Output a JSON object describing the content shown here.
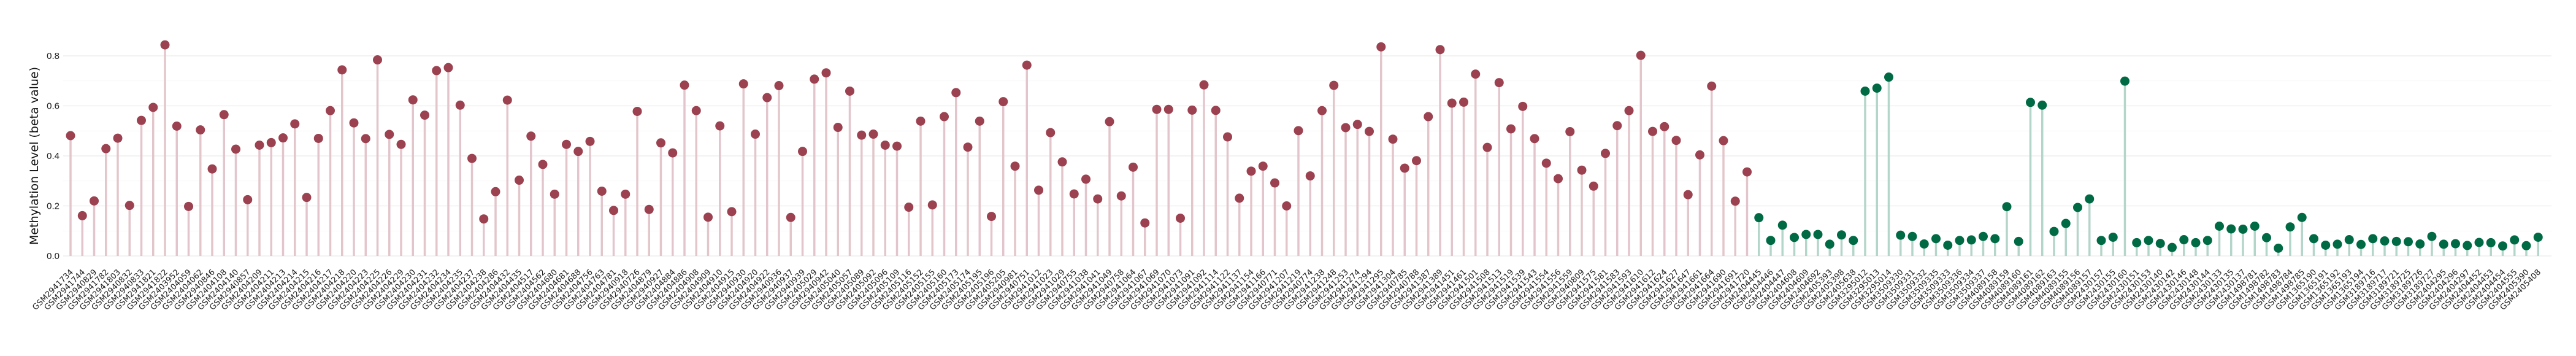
{
  "chart_data": {
    "type": "lollipop",
    "title": "",
    "xlabel": "",
    "ylabel": "Methylation Level (beta value)",
    "ylim": [
      0,
      0.86
    ],
    "yticks": [
      0.0,
      0.2,
      0.4,
      0.6,
      0.8
    ],
    "grid": true,
    "legend": "none",
    "series": [
      {
        "dot_color": "#9b4150",
        "stem_color": "#e3c6cc",
        "categories": [
          "GSM2941734",
          "GSM2941744",
          "GSM2940829",
          "GSM2941782",
          "GSM2941803",
          "GSM2940832",
          "GSM2940833",
          "GSM2941821",
          "GSM2941822",
          "GSM2403952",
          "GSM2404059",
          "GSM2404062",
          "GSM2940846",
          "GSM2404108",
          "GSM2404140",
          "GSM2940857",
          "GSM2404209",
          "GSM2404211",
          "GSM2404213",
          "GSM2404214",
          "GSM2404215",
          "GSM2404216",
          "GSM2404217",
          "GSM2404218",
          "GSM2404220",
          "GSM2404223",
          "GSM2404225",
          "GSM2404226",
          "GSM2404229",
          "GSM2404230",
          "GSM2404231",
          "GSM2404232",
          "GSM2404234",
          "GSM2404235",
          "GSM2404237",
          "GSM2404238",
          "GSM2404286",
          "GSM2404432",
          "GSM2404435",
          "GSM2404517",
          "GSM2404562",
          "GSM2404680",
          "GSM2404681",
          "GSM2404688",
          "GSM2404756",
          "GSM2404763",
          "GSM2404781",
          "GSM2940918",
          "GSM2940726",
          "GSM2404879",
          "GSM2940927",
          "GSM2404884",
          "GSM2404886",
          "GSM2404908",
          "GSM2404909",
          "GSM2404910",
          "GSM2404915",
          "GSM2940930",
          "GSM2404920",
          "GSM2404922",
          "GSM2940936",
          "GSM2940937",
          "GSM2940939",
          "GSM2405029",
          "GSM2940942",
          "GSM2405040",
          "GSM2405057",
          "GSM2405089",
          "GSM2405092",
          "GSM2405096",
          "GSM2405109",
          "GSM2405116",
          "GSM2405152",
          "GSM2405155",
          "GSM2405160",
          "GSM2405173",
          "GSM2405174",
          "GSM2405195",
          "GSM2405196",
          "GSM2405205",
          "GSM2940981",
          "GSM2940751",
          "GSM2941012",
          "GSM2941023",
          "GSM2941029",
          "GSM2940755",
          "GSM2941038",
          "GSM2941041",
          "GSM2941049",
          "GSM2940758",
          "GSM2941064",
          "GSM2941067",
          "GSM2941069",
          "GSM2941070",
          "GSM2941073",
          "GSM2941091",
          "GSM2941092",
          "GSM2941114",
          "GSM2941122",
          "GSM2941137",
          "GSM2941154",
          "GSM2941166",
          "GSM2940771",
          "GSM2941207",
          "GSM2941219",
          "GSM2940774",
          "GSM2941238",
          "GSM2941248",
          "GSM2941253",
          "GSM2941274",
          "GSM2941294",
          "GSM2941295",
          "GSM2941304",
          "GSM2940785",
          "GSM2940788",
          "GSM2941387",
          "GSM2941389",
          "GSM2941451",
          "GSM2941461",
          "GSM2941501",
          "GSM2941508",
          "GSM2941513",
          "GSM2941519",
          "GSM2941539",
          "GSM2941543",
          "GSM2941554",
          "GSM2941556",
          "GSM2941559",
          "GSM2940809",
          "GSM2941575",
          "GSM2941581",
          "GSM2941583",
          "GSM2941593",
          "GSM2941610",
          "GSM2941612",
          "GSM2941624",
          "GSM2941627",
          "GSM2941647",
          "GSM2941661",
          "GSM2941664",
          "GSM2941690",
          "GSM2941691",
          "GSM2941720"
        ],
        "values": [
          0.481,
          0.161,
          0.22,
          0.429,
          0.471,
          0.202,
          0.542,
          0.594,
          0.844,
          0.519,
          0.198,
          0.504,
          0.348,
          0.565,
          0.427,
          0.225,
          0.443,
          0.453,
          0.472,
          0.528,
          0.234,
          0.47,
          0.581,
          0.744,
          0.532,
          0.469,
          0.784,
          0.486,
          0.446,
          0.624,
          0.563,
          0.741,
          0.753,
          0.603,
          0.39,
          0.148,
          0.257,
          0.623,
          0.303,
          0.479,
          0.366,
          0.247,
          0.446,
          0.418,
          0.458,
          0.259,
          0.182,
          0.247,
          0.578,
          0.186,
          0.452,
          0.412,
          0.683,
          0.581,
          0.155,
          0.52,
          0.177,
          0.688,
          0.487,
          0.633,
          0.681,
          0.154,
          0.418,
          0.707,
          0.732,
          0.514,
          0.659,
          0.483,
          0.487,
          0.443,
          0.439,
          0.195,
          0.539,
          0.204,
          0.557,
          0.653,
          0.435,
          0.539,
          0.158,
          0.617,
          0.359,
          0.763,
          0.263,
          0.493,
          0.376,
          0.248,
          0.307,
          0.228,
          0.537,
          0.24,
          0.355,
          0.132,
          0.586,
          0.586,
          0.151,
          0.583,
          0.684,
          0.582,
          0.476,
          0.231,
          0.339,
          0.359,
          0.292,
          0.2,
          0.501,
          0.32,
          0.581,
          0.682,
          0.513,
          0.526,
          0.498,
          0.836,
          0.467,
          0.351,
          0.381,
          0.557,
          0.825,
          0.611,
          0.615,
          0.727,
          0.434,
          0.693,
          0.508,
          0.598,
          0.469,
          0.371,
          0.309,
          0.497,
          0.343,
          0.279,
          0.41,
          0.521,
          0.581,
          0.802,
          0.498,
          0.517,
          0.462,
          0.245,
          0.404,
          0.679,
          0.461,
          0.219,
          0.336
        ]
      },
      {
        "dot_color": "#006a45",
        "stem_color": "#b4d5c9",
        "categories": [
          "GSM2404445",
          "GSM2404446",
          "GSM2404447",
          "GSM2404608",
          "GSM2404609",
          "GSM2404692",
          "GSM2405393",
          "GSM2405398",
          "GSM2405638",
          "GSM3295012",
          "GSM3295013",
          "GSM3295014",
          "GSM3509330",
          "GSM3509331",
          "GSM3509332",
          "GSM3509335",
          "GSM3509333",
          "GSM3509336",
          "GSM3509334",
          "GSM3509337",
          "GSM4089158",
          "GSM4089159",
          "GSM4089160",
          "GSM4089161",
          "GSM4089162",
          "GSM4089163",
          "GSM4089155",
          "GSM4089156",
          "GSM4089157",
          "GSM2430157",
          "GSM2430155",
          "GSM2430160",
          "GSM2430151",
          "GSM2430153",
          "GSM2430140",
          "GSM2430142",
          "GSM2430146",
          "GSM2430148",
          "GSM2430144",
          "GSM2430133",
          "GSM2430135",
          "GSM2430137",
          "GSM1498781",
          "GSM1498782",
          "GSM1498783",
          "GSM1498784",
          "GSM1498785",
          "GSM1365190",
          "GSM1365191",
          "GSM1365192",
          "GSM1365193",
          "GSM1365194",
          "GSM3189716",
          "GSM3189717",
          "GSM3189721",
          "GSM3189725",
          "GSM3189726",
          "GSM3189727",
          "GSM2404295",
          "GSM2404296",
          "GSM2404297",
          "GSM2404452",
          "GSM2404453",
          "GSM2404454",
          "GSM2404555",
          "GSM2405390",
          "GSM2405408"
        ],
        "values": [
          0.153,
          0.062,
          0.123,
          0.074,
          0.086,
          0.086,
          0.047,
          0.084,
          0.062,
          0.659,
          0.671,
          0.715,
          0.083,
          0.078,
          0.048,
          0.069,
          0.043,
          0.062,
          0.064,
          0.078,
          0.069,
          0.197,
          0.058,
          0.614,
          0.603,
          0.098,
          0.13,
          0.194,
          0.228,
          0.062,
          0.075,
          0.699,
          0.053,
          0.062,
          0.05,
          0.034,
          0.065,
          0.053,
          0.062,
          0.119,
          0.108,
          0.107,
          0.119,
          0.073,
          0.031,
          0.116,
          0.154,
          0.069,
          0.043,
          0.047,
          0.065,
          0.046,
          0.069,
          0.06,
          0.058,
          0.057,
          0.048,
          0.078,
          0.047,
          0.049,
          0.042,
          0.054,
          0.053,
          0.04,
          0.064,
          0.041,
          0.075
        ]
      }
    ]
  }
}
